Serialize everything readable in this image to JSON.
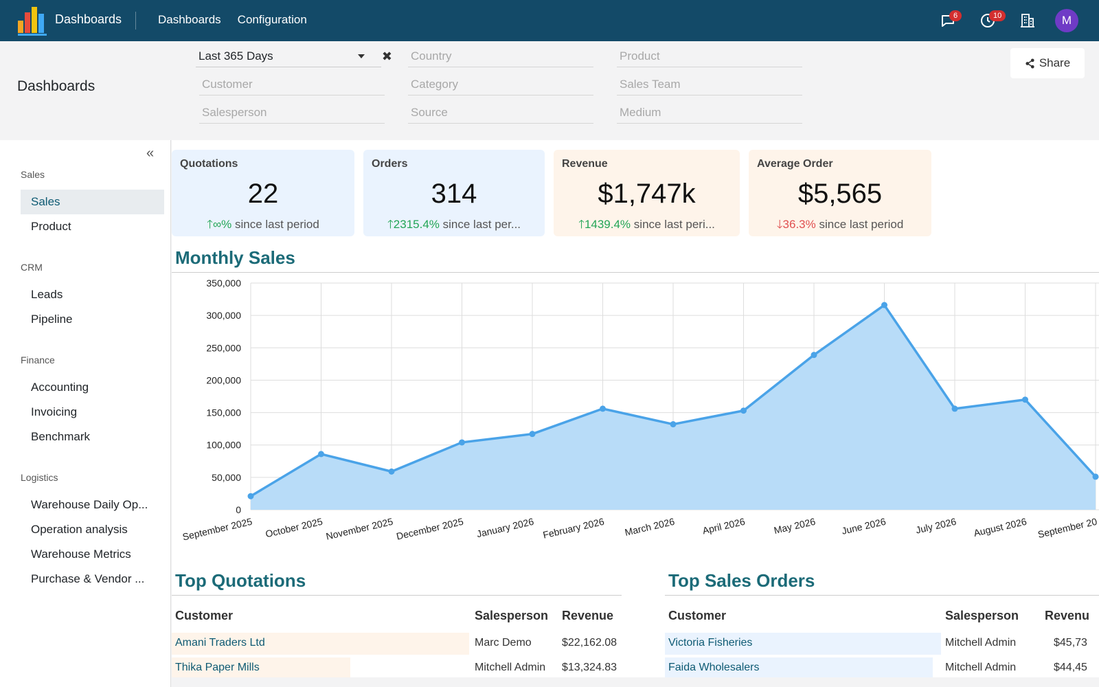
{
  "navbar": {
    "app_name": "Dashboards",
    "menu": [
      "Dashboards",
      "Configuration"
    ],
    "messages_count": "6",
    "activities_count": "10",
    "avatar_initial": "M"
  },
  "control_panel": {
    "title": "Dashboards",
    "date_filter": "Last 365 Days",
    "filters": {
      "country": "Country",
      "product": "Product",
      "customer": "Customer",
      "category": "Category",
      "sales_team": "Sales Team",
      "salesperson": "Salesperson",
      "source": "Source",
      "medium": "Medium"
    },
    "share_label": "Share"
  },
  "sidebar": {
    "groups": [
      {
        "label": "Sales",
        "items": [
          "Sales",
          "Product"
        ]
      },
      {
        "label": "CRM",
        "items": [
          "Leads",
          "Pipeline"
        ]
      },
      {
        "label": "Finance",
        "items": [
          "Accounting",
          "Invoicing",
          "Benchmark"
        ]
      },
      {
        "label": "Logistics",
        "items": [
          "Warehouse Daily Op...",
          "Operation analysis",
          "Warehouse Metrics",
          "Purchase & Vendor ..."
        ]
      }
    ],
    "active_item": "Sales"
  },
  "kpis": [
    {
      "title": "Quotations",
      "value": "22",
      "trend_dir": "up",
      "trend_value": "∞%",
      "trend_text": " since last period",
      "bg": "#eaf3fe"
    },
    {
      "title": "Orders",
      "value": "314",
      "trend_dir": "up",
      "trend_value": "2315.4%",
      "trend_text": " since last per...",
      "bg": "#eaf3fe"
    },
    {
      "title": "Revenue",
      "value": "$1,747k",
      "trend_dir": "up",
      "trend_value": "1439.4%",
      "trend_text": " since last peri...",
      "bg": "#fef4ea"
    },
    {
      "title": "Average Order",
      "value": "$5,565",
      "trend_dir": "down",
      "trend_value": "36.3%",
      "trend_text": " since last period",
      "bg": "#fef4ea"
    }
  ],
  "monthly_sales": {
    "title": "Monthly Sales"
  },
  "chart_data": {
    "type": "area",
    "title": "Monthly Sales",
    "categories": [
      "September 2025",
      "October 2025",
      "November 2025",
      "December 2025",
      "January 2026",
      "February 2026",
      "March 2026",
      "April 2026",
      "May 2026",
      "June 2026",
      "July 2026",
      "August 2026",
      "September 20"
    ],
    "values": [
      21000,
      86000,
      59000,
      104000,
      117000,
      156000,
      132000,
      153000,
      239000,
      316000,
      156000,
      170000,
      51000
    ],
    "ylim": [
      0,
      350000
    ],
    "yticks": [
      "0",
      "50,000",
      "100,000",
      "150,000",
      "200,000",
      "250,000",
      "300,000",
      "350,000"
    ],
    "grid": true,
    "line_color": "#4aa3e8",
    "fill_color": "#b8dcf8"
  },
  "top_quotations": {
    "title": "Top Quotations",
    "headers": [
      "Customer",
      "Salesperson",
      "Revenue"
    ],
    "rows": [
      {
        "customer": "Amani Traders Ltd",
        "salesperson": "Marc Demo",
        "revenue": "$22,162.08",
        "share": 1.0
      },
      {
        "customer": "Thika Paper Mills",
        "salesperson": "Mitchell Admin",
        "revenue": "$13,324.83",
        "share": 0.6
      }
    ]
  },
  "top_sales_orders": {
    "title": "Top Sales Orders",
    "headers": [
      "Customer",
      "Salesperson",
      "Revenu"
    ],
    "rows": [
      {
        "customer": "Victoria Fisheries",
        "salesperson": "Mitchell Admin",
        "revenue": "$45,73",
        "share": 1.0
      },
      {
        "customer": "Faida Wholesalers",
        "salesperson": "Mitchell Admin",
        "revenue": "$44,45",
        "share": 0.97
      }
    ]
  },
  "colors": {
    "navbar": "#134a68",
    "accent_title": "#1c6b78",
    "up": "#23a556",
    "down": "#e05050",
    "quote_bar": "#fef4ea",
    "order_bar": "#eaf3fe"
  }
}
